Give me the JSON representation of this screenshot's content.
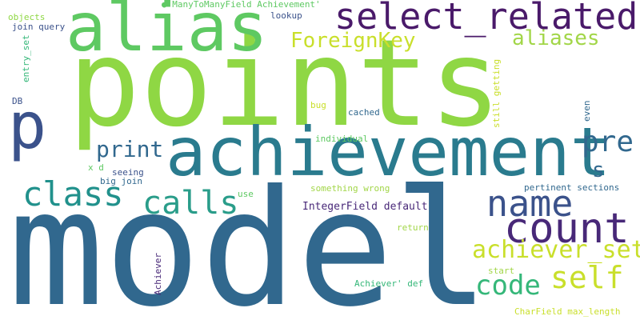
{
  "words": {
    "points": "points",
    "model": "model",
    "achievement": "achievement",
    "alias": "alias",
    "select_related": "select_related",
    "p": "p",
    "pre": "pre",
    "count": "count",
    "name": "name",
    "class": "class",
    "calls": "calls",
    "self": "self",
    "code": "code",
    "achiever_set": "achiever_set",
    "print": "print",
    "ForeignKey": "ForeignKey",
    "aliases": "aliases",
    "s": "s",
    "IntegerField default": "IntegerField default",
    "ManyToManyField Achievement'": "ManyToManyField Achievement'",
    "objects": "objects",
    "join query": "join query",
    "lookup": "lookup",
    "entry_set": "entry_set",
    "still getting": "still getting",
    "DB": "DB",
    "bug": "bug",
    "cached": "cached",
    "even": "even",
    "individual": "individual",
    "x d": "x d",
    "seeing": "seeing",
    "big join": "big join",
    "use": "use",
    "something wrong": "something wrong",
    "pertinent sections": "pertinent sections",
    "return": "return",
    "Achiever": "Achiever",
    "start": "start",
    "Achiever' def": "Achiever' def",
    "CharField max_length": "CharField max_length"
  },
  "colors": {
    "lime": "#8fd744",
    "green": "#5ec962",
    "teal": "#21918c",
    "blue": "#31688e",
    "indigo": "#3b528b",
    "purple": "#482878",
    "yellow": "#c9df2b",
    "aqua": "#35b779"
  }
}
